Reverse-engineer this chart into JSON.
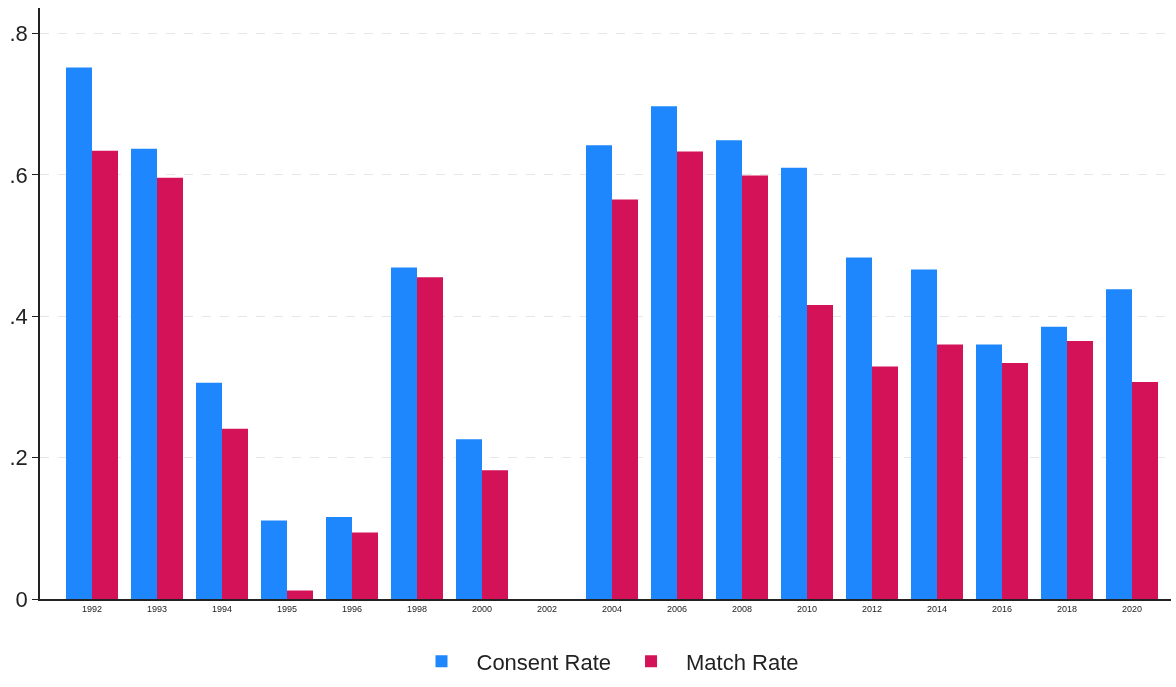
{
  "chart_data": {
    "type": "bar",
    "categories": [
      "1992",
      "1993",
      "1994",
      "1995",
      "1996",
      "1998",
      "2000",
      "2002",
      "2004",
      "2006",
      "2008",
      "2010",
      "2012",
      "2014",
      "2016",
      "2018",
      "2020"
    ],
    "series": [
      {
        "name": "Consent Rate",
        "color": "#1e87fd",
        "values": [
          0.752,
          0.637,
          0.306,
          0.111,
          0.116,
          0.469,
          0.226,
          null,
          0.642,
          0.697,
          0.649,
          0.61,
          0.483,
          0.466,
          0.36,
          0.385,
          0.438
        ]
      },
      {
        "name": "Match Rate",
        "color": "#d31257",
        "values": [
          0.634,
          0.596,
          0.241,
          0.012,
          0.094,
          0.455,
          0.182,
          null,
          0.565,
          0.633,
          0.599,
          0.416,
          0.329,
          0.36,
          0.334,
          0.365,
          0.307
        ]
      }
    ],
    "ylim": [
      0,
      0.836
    ],
    "yticks": [
      {
        "value": 0,
        "label": "0"
      },
      {
        "value": 0.2,
        "label": ".2"
      },
      {
        "value": 0.4,
        "label": ".4"
      },
      {
        "value": 0.6,
        "label": ".6"
      },
      {
        "value": 0.8,
        "label": ".8"
      }
    ],
    "grid": "y",
    "legend": "bottom"
  }
}
